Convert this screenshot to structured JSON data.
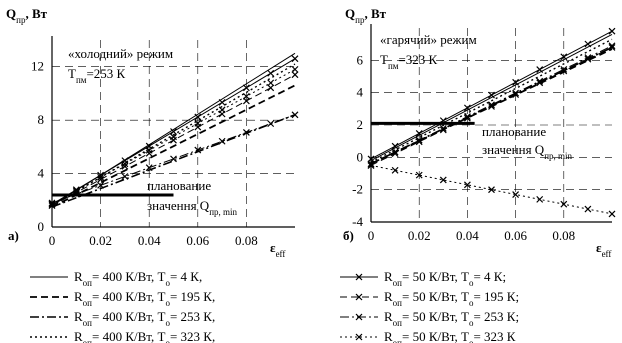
{
  "chart_data": [
    {
      "type": "line",
      "panel_label": "а)",
      "ylabel": "Q",
      "ylabel_sub": "пр",
      "ylabel_unit": ", Вт",
      "xlabel": "ε",
      "xlabel_sub": "eff",
      "mode_label": "«холодний» режим",
      "t_label": "T",
      "t_sub": "пм",
      "t_value": "=253 К",
      "planned_label_1": "планование",
      "planned_label_2": "значення Q",
      "planned_label_2_sub": "пр, min",
      "planned_value": 2.4,
      "xlim": [
        0,
        0.1
      ],
      "ylim": [
        0,
        14
      ],
      "xticks": [
        "0",
        "0.02",
        "0.04",
        "0.06",
        "0.08"
      ],
      "xtick_values": [
        0,
        0.02,
        0.04,
        0.06,
        0.08
      ],
      "yticks": [
        "0",
        "4",
        "8",
        "12"
      ],
      "ytick_values": [
        0,
        4,
        8,
        12
      ],
      "grid": true,
      "series": [
        {
          "style": "solid",
          "x": [
            0,
            0.1
          ],
          "y": [
            1.6,
            13.0
          ]
        },
        {
          "style": "dash",
          "x": [
            0,
            0.1
          ],
          "y": [
            1.5,
            10.6
          ]
        },
        {
          "style": "dashdot",
          "x": [
            0,
            0.1
          ],
          "y": [
            1.5,
            8.4
          ]
        },
        {
          "style": "dot",
          "x": [
            0,
            0.1
          ],
          "y": [
            1.6,
            12.2
          ]
        },
        {
          "style": "solid-x",
          "x": [
            0,
            0.1
          ],
          "y": [
            1.7,
            12.6
          ]
        },
        {
          "style": "dash-x",
          "x": [
            0,
            0.1
          ],
          "y": [
            1.6,
            11.4
          ]
        },
        {
          "style": "dashdot-x",
          "x": [
            0,
            0.1
          ],
          "y": [
            1.8,
            8.4
          ]
        },
        {
          "style": "dot-x",
          "x": [
            0,
            0.1
          ],
          "y": [
            1.7,
            11.8
          ]
        }
      ]
    },
    {
      "type": "line",
      "panel_label": "б)",
      "ylabel": "Q",
      "ylabel_sub": "пр",
      "ylabel_unit": ", Вт",
      "xlabel": "ε",
      "xlabel_sub": "eff",
      "mode_label": "«гарячий» режим",
      "t_label": "T",
      "t_sub": "пм",
      "t_value": "=323 К",
      "planned_label_1": "планование",
      "planned_label_2": "значення Q",
      "planned_label_2_sub": "пр, min",
      "planned_value": 2.1,
      "xlim": [
        0,
        0.1
      ],
      "ylim": [
        -4,
        8
      ],
      "xticks": [
        "0",
        "0.02",
        "0.04",
        "0.06",
        "0.08"
      ],
      "xtick_values": [
        0,
        0.02,
        0.04,
        0.06,
        0.08
      ],
      "yticks": [
        "-4",
        "-2",
        "0",
        "2",
        "4",
        "6"
      ],
      "ytick_values": [
        -4,
        -2,
        0,
        2,
        4,
        6
      ],
      "grid": true,
      "series": [
        {
          "style": "solid",
          "x": [
            0,
            0.1
          ],
          "y": [
            -0.2,
            7.6
          ]
        },
        {
          "style": "dash",
          "x": [
            0,
            0.1
          ],
          "y": [
            -0.4,
            6.7
          ]
        },
        {
          "style": "dashdot",
          "x": [
            0,
            0.1
          ],
          "y": [
            -0.4,
            6.8
          ]
        },
        {
          "style": "dot",
          "x": [
            0,
            0.1
          ],
          "y": [
            -0.3,
            7.3
          ]
        },
        {
          "style": "solid-x",
          "x": [
            0,
            0.1
          ],
          "y": [
            -0.1,
            7.8
          ]
        },
        {
          "style": "dash-x",
          "x": [
            0,
            0.1
          ],
          "y": [
            -0.5,
            6.8
          ]
        },
        {
          "style": "dashdot-x",
          "x": [
            0,
            0.1
          ],
          "y": [
            -0.4,
            6.9
          ]
        },
        {
          "style": "dot-x",
          "x": [
            0,
            0.1
          ],
          "y": [
            -0.5,
            -3.5
          ]
        }
      ]
    }
  ],
  "legend": {
    "left": [
      {
        "style": "solid",
        "r": "R",
        "r_sub": "оп",
        "r_val": "= 400 К/Вт, T",
        "t_sub": "о",
        "t_val": "= 4 К,"
      },
      {
        "style": "dash",
        "r": "R",
        "r_sub": "оп",
        "r_val": "= 400 К/Вт, T",
        "t_sub": "о",
        "t_val": "= 195 К,"
      },
      {
        "style": "dashdot",
        "r": "R",
        "r_sub": "оп",
        "r_val": "= 400 К/Вт, T",
        "t_sub": "о",
        "t_val": "= 253 К,"
      },
      {
        "style": "dot",
        "r": "R",
        "r_sub": "оп",
        "r_val": "= 400 К/Вт, T",
        "t_sub": "о",
        "t_val": "= 323 К,"
      }
    ],
    "right": [
      {
        "style": "solid-x",
        "r": "R",
        "r_sub": "оп",
        "r_val": "= 50 К/Вт, T",
        "t_sub": "о",
        "t_val": "= 4 К;"
      },
      {
        "style": "dash-x",
        "r": "R",
        "r_sub": "оп",
        "r_val": "= 50 К/Вт, T",
        "t_sub": "о",
        "t_val": "= 195 К;"
      },
      {
        "style": "dashdot-x",
        "r": "R",
        "r_sub": "оп",
        "r_val": "= 50 К/Вт, T",
        "t_sub": "о",
        "t_val": "= 253 К;"
      },
      {
        "style": "dot-x",
        "r": "R",
        "r_sub": "оп",
        "r_val": "= 50 К/Вт, T",
        "t_sub": "о",
        "t_val": "= 323 К"
      }
    ]
  }
}
